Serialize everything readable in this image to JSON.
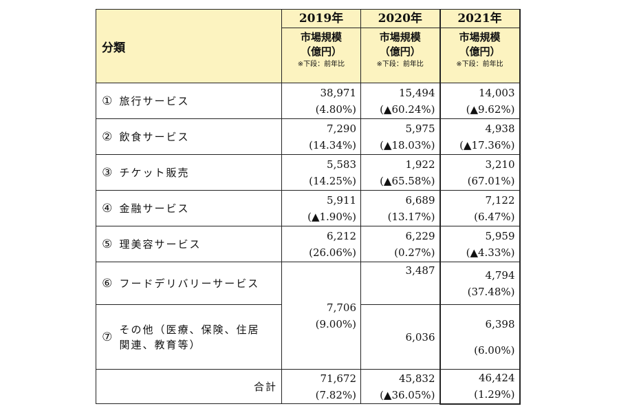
{
  "header": {
    "category": "分類",
    "years": [
      "2019年",
      "2020年",
      "2021年"
    ],
    "unit_line1": "市場規模",
    "unit_line2": "（億円）",
    "unit_line3": "※下段：前年比"
  },
  "rows": [
    {
      "no": "①",
      "name": "旅行サービス",
      "v2019": "38,971",
      "p2019": "(4.80%)",
      "v2020": "15,494",
      "p2020": "(▲60.24%)",
      "v2021": "14,003",
      "p2021": "(▲9.62%)"
    },
    {
      "no": "②",
      "name": "飲食サービス",
      "v2019": "7,290",
      "p2019": "(14.34%)",
      "v2020": "5,975",
      "p2020": "(▲18.03%)",
      "v2021": "4,938",
      "p2021": "(▲17.36%)"
    },
    {
      "no": "③",
      "name": "チケット販売",
      "v2019": "5,583",
      "p2019": "(14.25%)",
      "v2020": "1,922",
      "p2020": "(▲65.58%)",
      "v2021": "3,210",
      "p2021": "(67.01%)"
    },
    {
      "no": "④",
      "name": "金融サービス",
      "v2019": "5,911",
      "p2019": "(▲1.90%)",
      "v2020": "6,689",
      "p2020": "(13.17%)",
      "v2021": "7,122",
      "p2021": "(6.47%)"
    },
    {
      "no": "⑤",
      "name": "理美容サービス",
      "v2019": "6,212",
      "p2019": "(26.06%)",
      "v2020": "6,229",
      "p2020": "(0.27%)",
      "v2021": "5,959",
      "p2021": "(▲4.33%)"
    }
  ],
  "row6": {
    "no": "⑥",
    "name": "フードデリバリーサービス",
    "v2020": "3,487",
    "v2021": "4,794",
    "p2021": "(37.48%)"
  },
  "row7": {
    "no": "⑦",
    "name1": "その他（医療、保険、住居",
    "name2": "関連、教育等）",
    "v2020": "6,036",
    "v2021": "6,398",
    "p2021": "(6.00%)"
  },
  "merged2019": {
    "value": "7,706",
    "pct": "(9.00%)"
  },
  "total": {
    "label": "合計",
    "v2019": "71,672",
    "p2019": "(7.82%)",
    "v2020": "45,832",
    "p2020": "(▲36.05%)",
    "v2021": "46,424",
    "p2021": "(1.29%)"
  }
}
